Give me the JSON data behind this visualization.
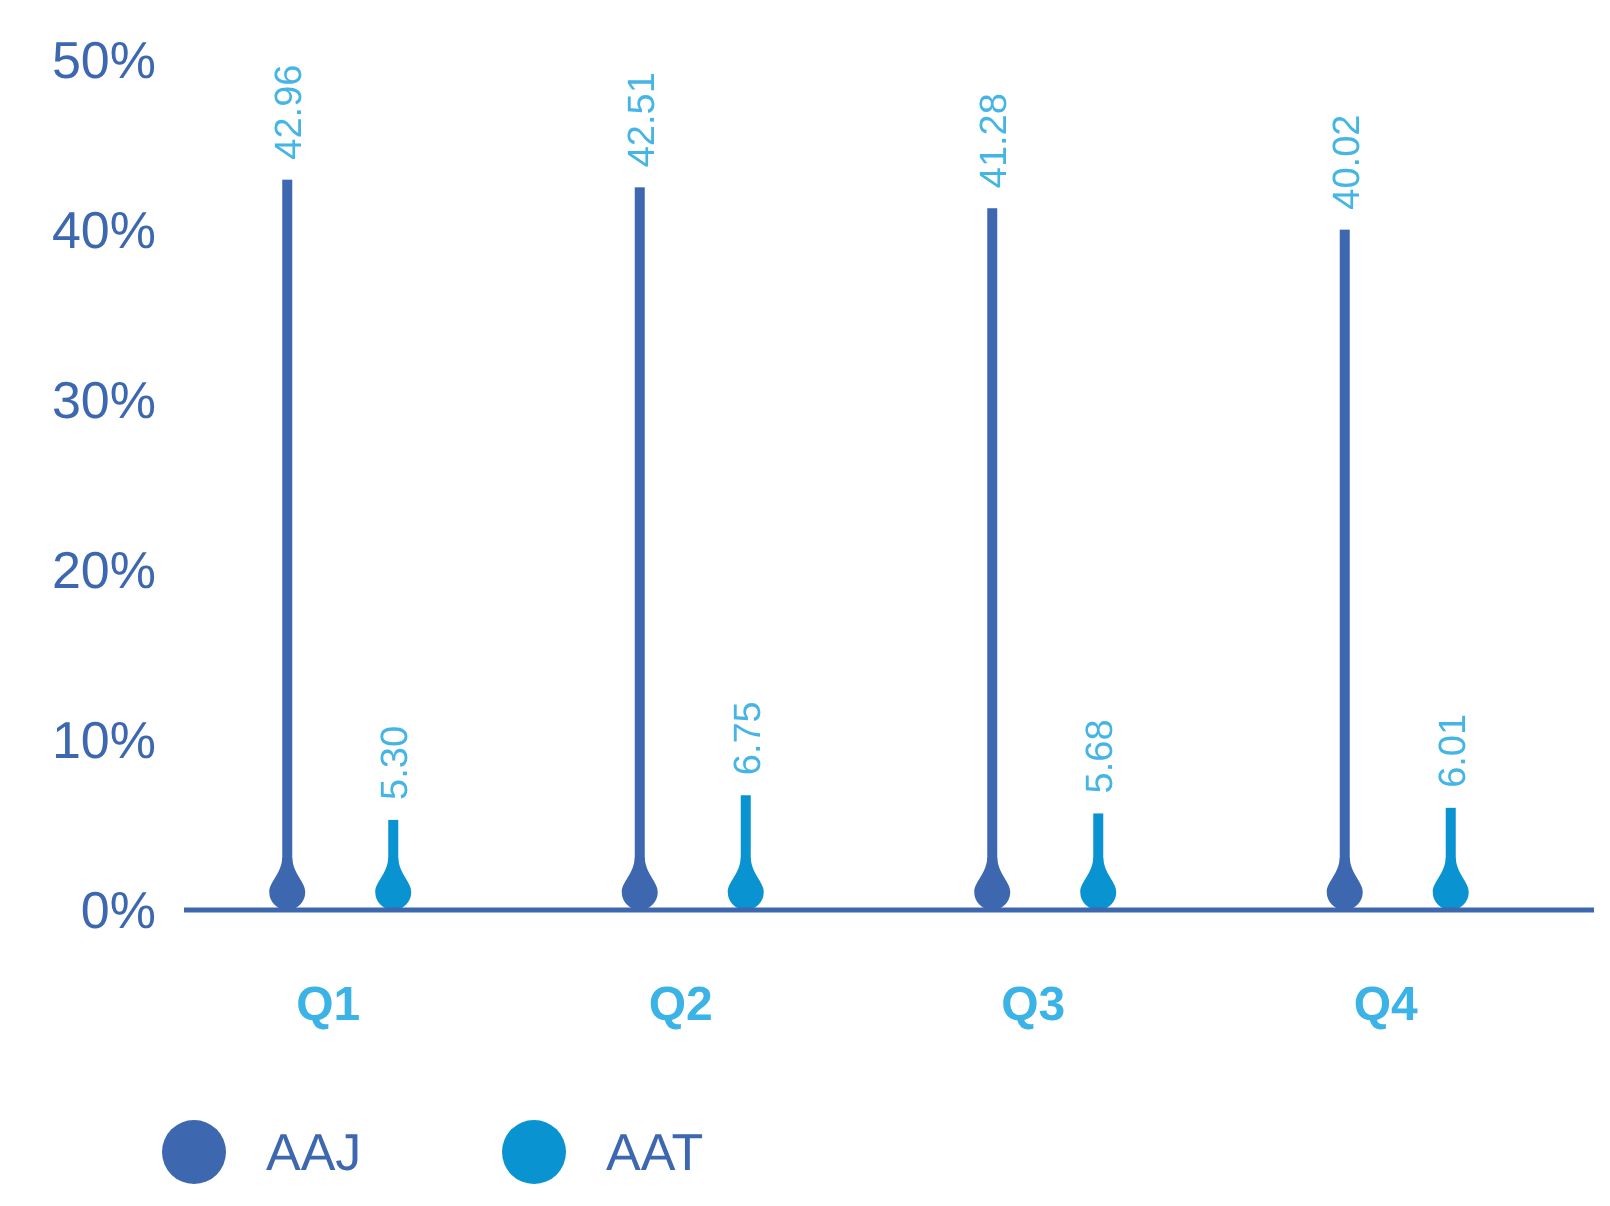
{
  "chart_data": {
    "type": "bar",
    "categories": [
      "Q1",
      "Q2",
      "Q3",
      "Q4"
    ],
    "series": [
      {
        "name": "AAJ",
        "color": "#3d68b0",
        "values": [
          42.96,
          42.51,
          41.28,
          40.02
        ]
      },
      {
        "name": "AAT",
        "color": "#0a93d1",
        "values": [
          5.3,
          6.75,
          5.68,
          6.01
        ]
      }
    ],
    "value_labels": [
      [
        "42.96",
        "42.51",
        "41.28",
        "40.02"
      ],
      [
        "5.30",
        "6.75",
        "5.68",
        "6.01"
      ]
    ],
    "ylim": [
      0,
      50
    ],
    "yticks": [
      {
        "value": 0,
        "label": "0%"
      },
      {
        "value": 10,
        "label": "10%"
      },
      {
        "value": 20,
        "label": "20%"
      },
      {
        "value": 30,
        "label": "30%"
      },
      {
        "value": 40,
        "label": "40%"
      },
      {
        "value": 50,
        "label": "50%"
      }
    ],
    "grid": false,
    "legend": "bottom left"
  }
}
